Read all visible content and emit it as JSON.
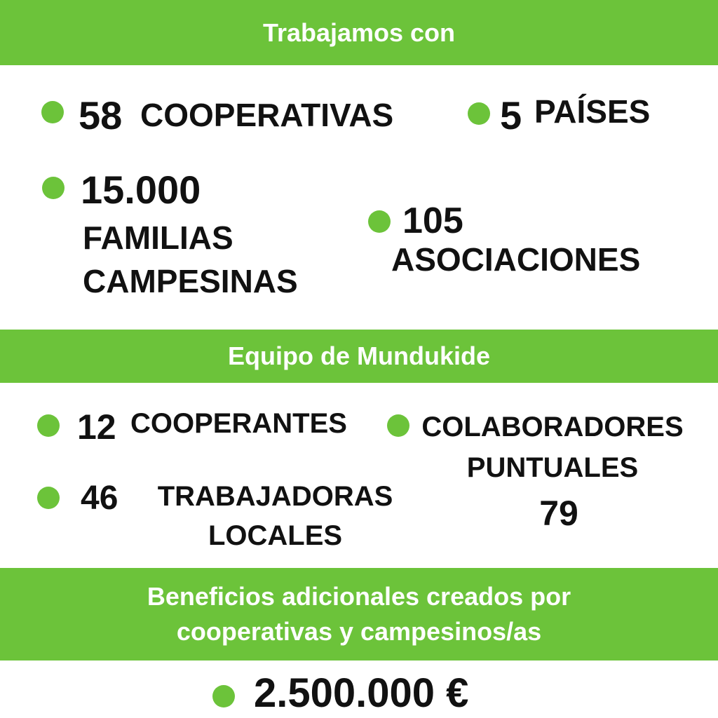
{
  "sections": [
    {
      "title": "Trabajamos con",
      "items": [
        {
          "number": "58",
          "label": "COOPERATIVAS"
        },
        {
          "number": "5",
          "label": "PAÍSES"
        },
        {
          "number": "15.000",
          "label": "FAMILIAS CAMPESINAS"
        },
        {
          "number": "105",
          "label": "ASOCIACIONES"
        }
      ]
    },
    {
      "title": "Equipo de Mundukide",
      "items": [
        {
          "number": "12",
          "label": "COOPERANTES"
        },
        {
          "number": "46",
          "label": "TRABAJADORAS LOCALES"
        },
        {
          "number": "79",
          "label": "COLABORADORES PUNTUALES"
        }
      ]
    },
    {
      "title": "Beneficios adicionales creados por cooperativas y campesinos/as",
      "items": [
        {
          "number": "2.500.000 €"
        }
      ]
    }
  ]
}
